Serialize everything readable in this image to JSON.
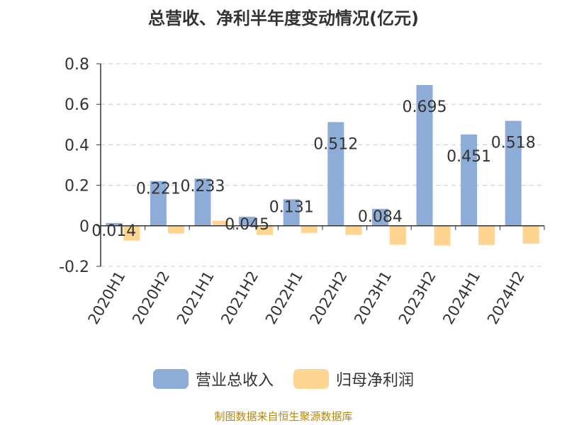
{
  "title": "总营收、净利半年度变动情况(亿元)",
  "footer": "制图数据来自恒生聚源数据库",
  "legend": [
    {
      "label": "营业总收入",
      "color": "#8eacd8"
    },
    {
      "label": "归母净利润",
      "color": "#ffd591"
    }
  ],
  "chart_data": {
    "type": "bar",
    "title": "总营收、净利半年度变动情况(亿元)",
    "categories": [
      "2020H1",
      "2020H2",
      "2021H1",
      "2021H2",
      "2022H1",
      "2022H2",
      "2023H1",
      "2023H2",
      "2024H1",
      "2024H2"
    ],
    "series": [
      {
        "name": "营业总收入",
        "color": "#8eacd8",
        "values": [
          0.014,
          0.221,
          0.233,
          0.045,
          0.131,
          0.512,
          0.084,
          0.695,
          0.451,
          0.518
        ]
      },
      {
        "name": "归母净利润",
        "color": "#ffd591",
        "values": [
          -0.073,
          -0.038,
          0.025,
          -0.045,
          -0.035,
          -0.045,
          -0.093,
          -0.097,
          -0.095,
          -0.088
        ]
      }
    ],
    "data_labels": [
      "0.014",
      "0.221",
      "0.233",
      "0.045",
      "0.131",
      "0.512",
      "0.084",
      "0.695",
      "0.451",
      "0.518"
    ],
    "yticks": [
      "-0.2",
      "0",
      "0.2",
      "0.4",
      "0.6",
      "0.8"
    ],
    "ylim": [
      -0.2,
      0.8
    ],
    "grid": true,
    "legend_position": "bottom"
  }
}
